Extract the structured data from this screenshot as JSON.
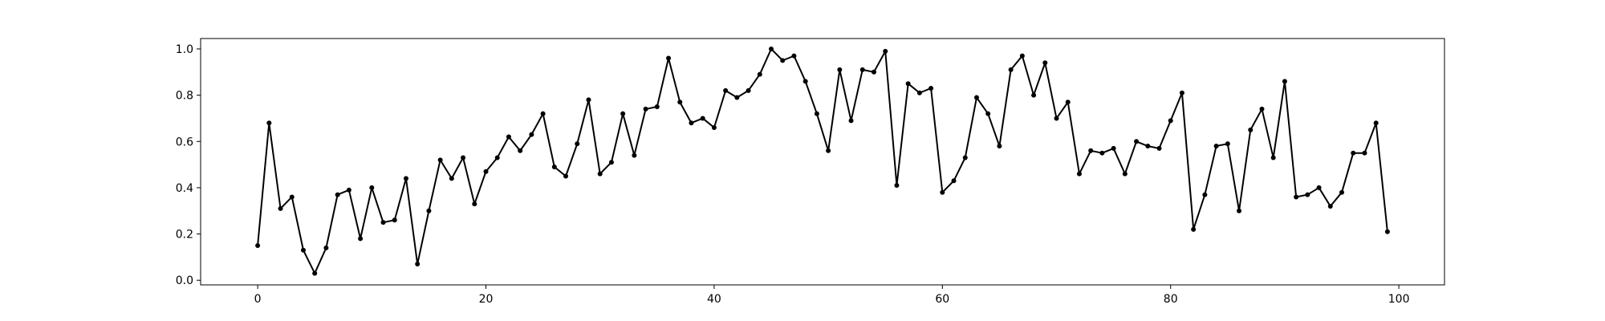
{
  "chart_data": {
    "type": "line",
    "title": "",
    "xlabel": "",
    "ylabel": "",
    "xlim": [
      -5,
      104
    ],
    "ylim": [
      -0.02,
      1.045
    ],
    "xticks": [
      0,
      20,
      40,
      60,
      80,
      100
    ],
    "xtick_labels": [
      "0",
      "20",
      "40",
      "60",
      "80",
      "100"
    ],
    "yticks": [
      0.0,
      0.2,
      0.4,
      0.6,
      0.8,
      1.0
    ],
    "ytick_labels": [
      "0.0",
      "0.2",
      "0.4",
      "0.6",
      "0.8",
      "1.0"
    ],
    "grid": false,
    "legend": "none",
    "line_color": "#000000",
    "marker": "dot",
    "series": [
      {
        "x": [
          0,
          1,
          2,
          3,
          4,
          5,
          6,
          7,
          8,
          9,
          10,
          11,
          12,
          13,
          14,
          15,
          16,
          17,
          18,
          19,
          20,
          21,
          22,
          23,
          24,
          25,
          26,
          27,
          28,
          29,
          30,
          31,
          32,
          33,
          34,
          35,
          36,
          37,
          38,
          39,
          40,
          41,
          42,
          43,
          44,
          45,
          46,
          47,
          48,
          49,
          50,
          51,
          52,
          53,
          54,
          55,
          56,
          57,
          58,
          59,
          60,
          61,
          62,
          63,
          64,
          65,
          66,
          67,
          68,
          69,
          70,
          71,
          72,
          73,
          74,
          75,
          76,
          77,
          78,
          79,
          80,
          81,
          82,
          83,
          84,
          85,
          86,
          87,
          88,
          89,
          90,
          91,
          92,
          93,
          94,
          95,
          96,
          97,
          98,
          99
        ],
        "values": [
          0.15,
          0.68,
          0.31,
          0.36,
          0.13,
          0.03,
          0.14,
          0.37,
          0.39,
          0.18,
          0.4,
          0.25,
          0.26,
          0.44,
          0.07,
          0.3,
          0.52,
          0.44,
          0.53,
          0.33,
          0.47,
          0.53,
          0.62,
          0.56,
          0.63,
          0.72,
          0.49,
          0.45,
          0.59,
          0.78,
          0.46,
          0.51,
          0.72,
          0.54,
          0.74,
          0.75,
          0.96,
          0.77,
          0.68,
          0.7,
          0.66,
          0.82,
          0.79,
          0.82,
          0.89,
          1.0,
          0.95,
          0.97,
          0.86,
          0.72,
          0.56,
          0.91,
          0.69,
          0.91,
          0.9,
          0.99,
          0.41,
          0.85,
          0.81,
          0.83,
          0.38,
          0.43,
          0.53,
          0.79,
          0.72,
          0.58,
          0.91,
          0.97,
          0.8,
          0.94,
          0.7,
          0.77,
          0.46,
          0.56,
          0.55,
          0.57,
          0.46,
          0.6,
          0.58,
          0.57,
          0.69,
          0.81,
          0.22,
          0.37,
          0.58,
          0.59,
          0.3,
          0.65,
          0.74,
          0.53,
          0.86,
          0.36,
          0.37,
          0.4,
          0.32,
          0.38,
          0.55,
          0.55,
          0.68,
          0.21
        ]
      }
    ]
  }
}
